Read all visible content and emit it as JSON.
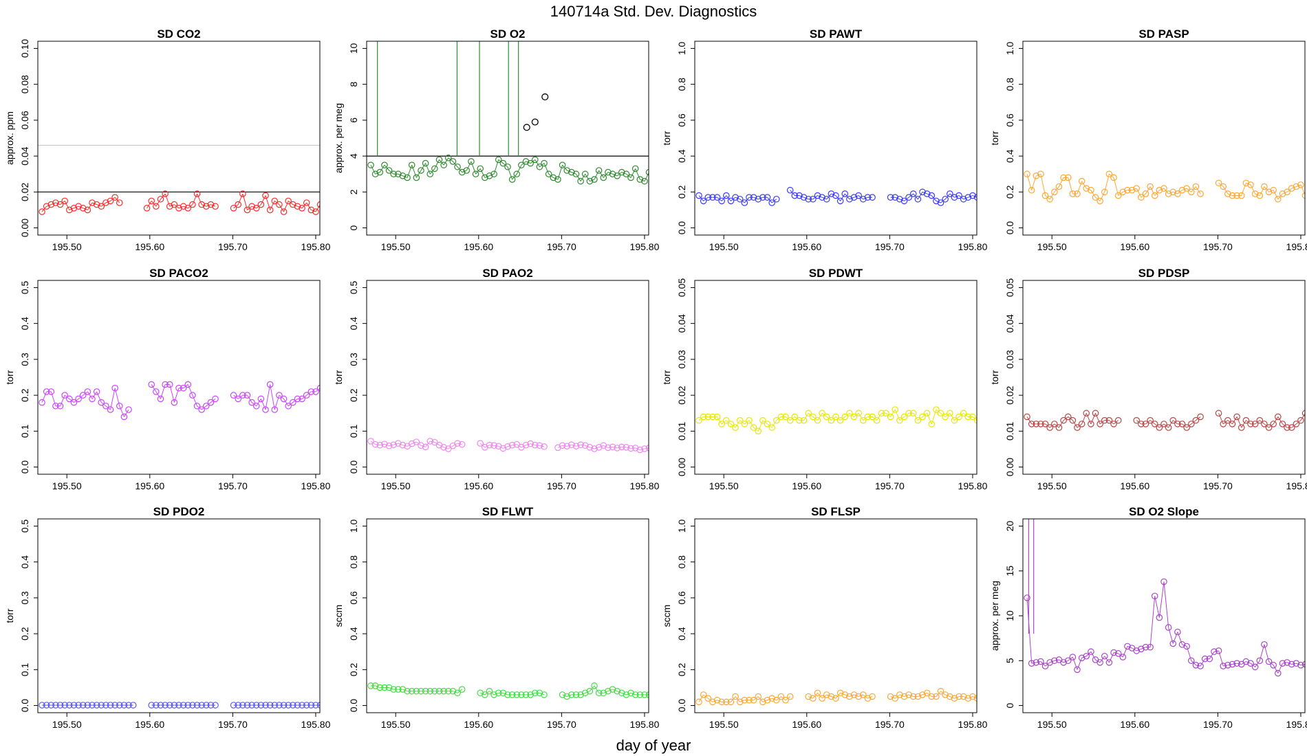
{
  "figure": {
    "title": "140714a   Std. Dev. Diagnostics",
    "xlabel": "day of year",
    "xticks": [
      "195.50",
      "195.60",
      "195.70",
      "195.80"
    ],
    "xrange": [
      195.465,
      195.805
    ]
  },
  "chart_data": [
    {
      "type": "scatter",
      "title": "SD CO2",
      "ylabel": "approx. ppm",
      "color": "#ff2a2a",
      "ylim": [
        0,
        0.1
      ],
      "yticks": [
        "0.00",
        "0.02",
        "0.04",
        "0.06",
        "0.08",
        "0.10"
      ],
      "hlines": [
        {
          "y": 0.02,
          "color": "#000000"
        },
        {
          "y": 0.046,
          "color": "#c8c8c8"
        }
      ],
      "x_start": 195.47,
      "x_step": 0.0055,
      "gaps": [
        [
          195.567,
          195.595
        ],
        [
          195.68,
          195.697
        ]
      ],
      "values": [
        0.009,
        0.012,
        0.013,
        0.014,
        0.013,
        0.015,
        0.01,
        0.011,
        0.012,
        0.011,
        0.01,
        0.014,
        0.013,
        0.012,
        0.014,
        0.015,
        0.017,
        0.014,
        0.012,
        0.013,
        0.014,
        0.014,
        0.013,
        0.011,
        0.015,
        0.012,
        0.016,
        0.019,
        0.012,
        0.013,
        0.011,
        0.012,
        0.011,
        0.013,
        0.019,
        0.013,
        0.012,
        0.013,
        0.012,
        0.014,
        0.017,
        0.013,
        0.011,
        0.013,
        0.019,
        0.01,
        0.012,
        0.011,
        0.013,
        0.018,
        0.01,
        0.015,
        0.013,
        0.009,
        0.015,
        0.013,
        0.012,
        0.011,
        0.014,
        0.01,
        0.009,
        0.013
      ]
    },
    {
      "type": "scatter",
      "title": "SD O2",
      "ylabel": "approx. per meg",
      "color": "#2e8b2e",
      "ylim": [
        0,
        10
      ],
      "yticks": [
        "0",
        "2",
        "4",
        "6",
        "8",
        "10"
      ],
      "hlines": [
        {
          "y": 4,
          "color": "#000000"
        }
      ],
      "x_start": 195.47,
      "x_step": 0.0055,
      "gaps": [],
      "spikes": [
        195.478,
        195.574,
        195.601,
        195.636,
        195.648
      ],
      "highlight": [
        {
          "x": 195.658,
          "y": 5.6
        },
        {
          "x": 195.668,
          "y": 5.9
        },
        {
          "x": 195.68,
          "y": 7.3
        }
      ],
      "values": [
        3.5,
        3.0,
        3.1,
        3.5,
        3.2,
        3.0,
        3.0,
        2.9,
        2.8,
        3.5,
        2.8,
        3.2,
        3.6,
        3.0,
        3.3,
        3.8,
        3.5,
        3.9,
        3.7,
        3.4,
        3.1,
        3.2,
        3.7,
        3.0,
        3.3,
        2.8,
        2.9,
        3.0,
        3.8,
        3.6,
        3.4,
        2.7,
        3.0,
        3.5,
        3.7,
        3.6,
        3.8,
        3.4,
        3.6,
        3.0,
        2.8,
        2.7,
        3.5,
        3.2,
        3.1,
        3.0,
        2.6,
        3.0,
        2.6,
        2.7,
        3.2,
        2.8,
        3.1,
        3.0,
        2.9,
        3.1,
        3.0,
        2.8,
        3.3,
        2.7,
        2.6,
        3.1
      ]
    },
    {
      "type": "scatter",
      "title": "SD PAWT",
      "ylabel": "torr",
      "color": "#3a3aff",
      "ylim": [
        0,
        1.0
      ],
      "yticks": [
        "0.0",
        "0.2",
        "0.4",
        "0.6",
        "0.8",
        "1.0"
      ],
      "hlines": [],
      "x_start": 195.47,
      "x_step": 0.0055,
      "gaps": [
        [
          195.565,
          195.576
        ],
        [
          195.68,
          195.697
        ]
      ],
      "values": [
        0.18,
        0.15,
        0.17,
        0.17,
        0.17,
        0.15,
        0.18,
        0.15,
        0.17,
        0.16,
        0.14,
        0.17,
        0.17,
        0.16,
        0.17,
        0.17,
        0.14,
        0.16,
        0.14,
        0.15,
        0.21,
        0.18,
        0.18,
        0.17,
        0.16,
        0.16,
        0.18,
        0.17,
        0.16,
        0.19,
        0.18,
        0.15,
        0.19,
        0.16,
        0.17,
        0.18,
        0.16,
        0.17,
        0.17,
        0.15,
        0.18,
        0.17,
        0.17,
        0.17,
        0.16,
        0.15,
        0.17,
        0.19,
        0.16,
        0.2,
        0.19,
        0.18,
        0.15,
        0.14,
        0.16,
        0.19,
        0.17,
        0.18,
        0.16,
        0.17,
        0.18,
        0.17
      ]
    },
    {
      "type": "scatter",
      "title": "SD PASP",
      "ylabel": "torr",
      "color": "#ffa733",
      "ylim": [
        0,
        1.0
      ],
      "yticks": [
        "0.0",
        "0.2",
        "0.4",
        "0.6",
        "0.8",
        "1.0"
      ],
      "hlines": [],
      "x_start": 195.47,
      "x_step": 0.0055,
      "gaps": [
        [
          195.68,
          195.697
        ]
      ],
      "values": [
        0.3,
        0.21,
        0.29,
        0.3,
        0.18,
        0.16,
        0.2,
        0.23,
        0.28,
        0.28,
        0.19,
        0.19,
        0.26,
        0.22,
        0.21,
        0.17,
        0.15,
        0.2,
        0.3,
        0.28,
        0.18,
        0.2,
        0.21,
        0.21,
        0.22,
        0.17,
        0.19,
        0.23,
        0.18,
        0.21,
        0.22,
        0.19,
        0.2,
        0.19,
        0.21,
        0.22,
        0.2,
        0.23,
        0.19,
        0.21,
        0.28,
        0.17,
        0.25,
        0.23,
        0.19,
        0.18,
        0.18,
        0.18,
        0.25,
        0.24,
        0.19,
        0.18,
        0.23,
        0.2,
        0.21,
        0.16,
        0.19,
        0.2,
        0.22,
        0.23,
        0.24,
        0.18
      ]
    },
    {
      "type": "scatter",
      "title": "SD PACO2",
      "ylabel": "torr",
      "color": "#cc44ff",
      "ylim": [
        0,
        0.5
      ],
      "yticks": [
        "0.0",
        "0.1",
        "0.2",
        "0.3",
        "0.4",
        "0.5"
      ],
      "hlines": [],
      "x_start": 195.47,
      "x_step": 0.0055,
      "gaps": [
        [
          195.575,
          195.598
        ],
        [
          195.68,
          195.697
        ]
      ],
      "values": [
        0.18,
        0.21,
        0.21,
        0.17,
        0.17,
        0.2,
        0.19,
        0.18,
        0.19,
        0.2,
        0.21,
        0.19,
        0.21,
        0.18,
        0.17,
        0.16,
        0.22,
        0.17,
        0.14,
        0.16,
        0.16,
        0.2,
        0.18,
        0.19,
        0.23,
        0.21,
        0.19,
        0.23,
        0.23,
        0.18,
        0.22,
        0.22,
        0.23,
        0.2,
        0.17,
        0.16,
        0.17,
        0.18,
        0.19,
        0.18,
        0.23,
        0.22,
        0.2,
        0.19,
        0.2,
        0.2,
        0.18,
        0.17,
        0.19,
        0.16,
        0.23,
        0.16,
        0.2,
        0.19,
        0.17,
        0.18,
        0.19,
        0.19,
        0.2,
        0.21,
        0.21,
        0.22
      ]
    },
    {
      "type": "scatter",
      "title": "SD PAO2",
      "ylabel": "torr",
      "color": "#ee88ee",
      "ylim": [
        0,
        0.5
      ],
      "yticks": [
        "0.0",
        "0.1",
        "0.2",
        "0.3",
        "0.4",
        "0.5"
      ],
      "hlines": [],
      "x_start": 195.47,
      "x_step": 0.0055,
      "gaps": [
        [
          195.585,
          195.597
        ],
        [
          195.68,
          195.695
        ]
      ],
      "values": [
        0.072,
        0.063,
        0.061,
        0.064,
        0.059,
        0.062,
        0.066,
        0.061,
        0.058,
        0.065,
        0.07,
        0.06,
        0.056,
        0.072,
        0.069,
        0.061,
        0.055,
        0.051,
        0.059,
        0.066,
        0.063,
        0.06,
        0.06,
        0.067,
        0.066,
        0.055,
        0.061,
        0.06,
        0.058,
        0.052,
        0.057,
        0.061,
        0.063,
        0.055,
        0.061,
        0.065,
        0.061,
        0.06,
        0.057,
        0.055,
        0.05,
        0.054,
        0.06,
        0.058,
        0.062,
        0.058,
        0.062,
        0.06,
        0.055,
        0.051,
        0.055,
        0.06,
        0.054,
        0.056,
        0.053,
        0.056,
        0.055,
        0.052,
        0.053,
        0.048,
        0.051,
        0.053
      ]
    },
    {
      "type": "scatter",
      "title": "SD PDWT",
      "ylabel": "torr",
      "color": "#e8e800",
      "ylim": [
        0,
        0.05
      ],
      "yticks": [
        "0.00",
        "0.01",
        "0.02",
        "0.03",
        "0.04",
        "0.05"
      ],
      "hlines": [],
      "x_start": 195.47,
      "x_step": 0.0055,
      "gaps": [],
      "values": [
        0.013,
        0.014,
        0.014,
        0.014,
        0.014,
        0.012,
        0.013,
        0.012,
        0.011,
        0.013,
        0.012,
        0.013,
        0.011,
        0.01,
        0.013,
        0.012,
        0.011,
        0.013,
        0.014,
        0.014,
        0.013,
        0.014,
        0.013,
        0.013,
        0.015,
        0.014,
        0.013,
        0.015,
        0.014,
        0.013,
        0.014,
        0.013,
        0.014,
        0.015,
        0.014,
        0.015,
        0.013,
        0.014,
        0.014,
        0.013,
        0.015,
        0.015,
        0.014,
        0.016,
        0.013,
        0.014,
        0.015,
        0.015,
        0.013,
        0.014,
        0.015,
        0.012,
        0.016,
        0.015,
        0.014,
        0.015,
        0.013,
        0.014,
        0.015,
        0.014,
        0.014,
        0.013
      ]
    },
    {
      "type": "scatter",
      "title": "SD PDSP",
      "ylabel": "torr",
      "color": "#bb4444",
      "ylim": [
        0,
        0.05
      ],
      "yticks": [
        "0.00",
        "0.01",
        "0.02",
        "0.03",
        "0.04",
        "0.05"
      ],
      "hlines": [],
      "x_start": 195.47,
      "x_step": 0.0055,
      "gaps": [
        [
          195.584,
          195.598
        ],
        [
          195.68,
          195.697
        ]
      ],
      "values": [
        0.014,
        0.012,
        0.012,
        0.012,
        0.012,
        0.011,
        0.012,
        0.011,
        0.013,
        0.014,
        0.013,
        0.011,
        0.012,
        0.015,
        0.012,
        0.015,
        0.012,
        0.013,
        0.013,
        0.012,
        0.013,
        0.012,
        0.011,
        0.014,
        0.013,
        0.012,
        0.012,
        0.013,
        0.012,
        0.011,
        0.012,
        0.011,
        0.013,
        0.012,
        0.012,
        0.011,
        0.012,
        0.013,
        0.014,
        0.014,
        0.013,
        0.012,
        0.015,
        0.012,
        0.013,
        0.012,
        0.014,
        0.011,
        0.013,
        0.012,
        0.012,
        0.013,
        0.012,
        0.011,
        0.012,
        0.014,
        0.012,
        0.011,
        0.011,
        0.012,
        0.013,
        0.015
      ]
    },
    {
      "type": "scatter",
      "title": "SD PDO2",
      "ylabel": "torr",
      "color": "#5a5aee",
      "ylim": [
        0,
        0.5
      ],
      "yticks": [
        "0.0",
        "0.1",
        "0.2",
        "0.3",
        "0.4",
        "0.5"
      ],
      "hlines": [],
      "x_start": 195.47,
      "x_step": 0.0055,
      "gaps": [
        [
          195.585,
          195.597
        ],
        [
          195.68,
          195.697
        ]
      ],
      "values": [
        0.001,
        0.001,
        0.001,
        0.001,
        0.001,
        0.001,
        0.001,
        0.001,
        0.001,
        0.001,
        0.001,
        0.001,
        0.001,
        0.001,
        0.001,
        0.001,
        0.001,
        0.001,
        0.001,
        0.001,
        0.001,
        0.001,
        0.001,
        0.001,
        0.001,
        0.001,
        0.001,
        0.001,
        0.001,
        0.001,
        0.001,
        0.001,
        0.001,
        0.001,
        0.001,
        0.001,
        0.001,
        0.001,
        0.001,
        0.001,
        0.001,
        0.001,
        0.001,
        0.001,
        0.001,
        0.001,
        0.001,
        0.001,
        0.001,
        0.001,
        0.001,
        0.001,
        0.001,
        0.001,
        0.001,
        0.001,
        0.001,
        0.001,
        0.001,
        0.001,
        0.001,
        0.001
      ]
    },
    {
      "type": "scatter",
      "title": "SD FLWT",
      "ylabel": "sccm",
      "color": "#44dd44",
      "ylim": [
        0,
        1.0
      ],
      "yticks": [
        "0.0",
        "0.2",
        "0.4",
        "0.6",
        "0.8",
        "1.0"
      ],
      "hlines": [],
      "x_start": 195.47,
      "x_step": 0.0055,
      "gaps": [
        [
          195.585,
          195.597
        ],
        [
          195.68,
          195.697
        ]
      ],
      "values": [
        0.11,
        0.11,
        0.1,
        0.1,
        0.1,
        0.09,
        0.09,
        0.09,
        0.08,
        0.08,
        0.08,
        0.08,
        0.08,
        0.08,
        0.08,
        0.08,
        0.08,
        0.08,
        0.08,
        0.07,
        0.09,
        0.07,
        0.08,
        0.06,
        0.07,
        0.06,
        0.08,
        0.06,
        0.07,
        0.07,
        0.06,
        0.06,
        0.06,
        0.06,
        0.06,
        0.06,
        0.07,
        0.07,
        0.06,
        0.07,
        0.07,
        0.05,
        0.06,
        0.05,
        0.06,
        0.06,
        0.06,
        0.07,
        0.08,
        0.11,
        0.07,
        0.07,
        0.08,
        0.09,
        0.08,
        0.07,
        0.06,
        0.07,
        0.06,
        0.06,
        0.06,
        0.06
      ]
    },
    {
      "type": "scatter",
      "title": "SD FLSP",
      "ylabel": "sccm",
      "color": "#ffa733",
      "ylim": [
        0,
        1.0
      ],
      "yticks": [
        "0.0",
        "0.2",
        "0.4",
        "0.6",
        "0.8",
        "1.0"
      ],
      "hlines": [],
      "x_start": 195.47,
      "x_step": 0.0055,
      "gaps": [
        [
          195.585,
          195.597
        ],
        [
          195.68,
          195.697
        ]
      ],
      "values": [
        0.02,
        0.06,
        0.04,
        0.02,
        0.03,
        0.02,
        0.02,
        0.02,
        0.05,
        0.02,
        0.03,
        0.03,
        0.03,
        0.05,
        0.02,
        0.03,
        0.04,
        0.03,
        0.05,
        0.03,
        0.05,
        0.04,
        0.03,
        0.07,
        0.05,
        0.04,
        0.07,
        0.04,
        0.06,
        0.05,
        0.04,
        0.07,
        0.06,
        0.05,
        0.06,
        0.05,
        0.06,
        0.04,
        0.05,
        0.06,
        0.08,
        0.08,
        0.05,
        0.04,
        0.06,
        0.05,
        0.06,
        0.05,
        0.05,
        0.06,
        0.07,
        0.05,
        0.05,
        0.08,
        0.06,
        0.05,
        0.04,
        0.05,
        0.05,
        0.04,
        0.05,
        0.04
      ]
    },
    {
      "type": "scatter",
      "title": "SD O2 Slope",
      "ylabel": "approx. per meg",
      "color": "#aa44cc",
      "ylim": [
        0,
        20
      ],
      "yticks": [
        "0",
        "5",
        "10",
        "15",
        "20"
      ],
      "hlines": [],
      "x_start": 195.47,
      "x_step": 0.0055,
      "gaps": [],
      "spikes": [
        195.472,
        195.478
      ],
      "highlight": [],
      "values": [
        12.0,
        4.7,
        4.8,
        4.9,
        4.4,
        4.8,
        5.0,
        5.1,
        4.8,
        5.0,
        5.4,
        4.0,
        5.3,
        5.5,
        6.0,
        5.1,
        4.8,
        5.5,
        4.8,
        5.9,
        5.8,
        5.4,
        6.6,
        6.4,
        6.1,
        6.3,
        6.5,
        6.5,
        12.2,
        9.8,
        13.8,
        8.7,
        6.9,
        8.2,
        6.8,
        6.6,
        5.0,
        4.5,
        4.4,
        5.2,
        5.2,
        6.0,
        6.1,
        4.4,
        4.5,
        4.6,
        4.7,
        4.6,
        4.9,
        4.7,
        4.3,
        5.0,
        6.8,
        4.9,
        4.5,
        3.6,
        4.7,
        4.8,
        4.6,
        4.7,
        4.5,
        4.6
      ]
    }
  ]
}
